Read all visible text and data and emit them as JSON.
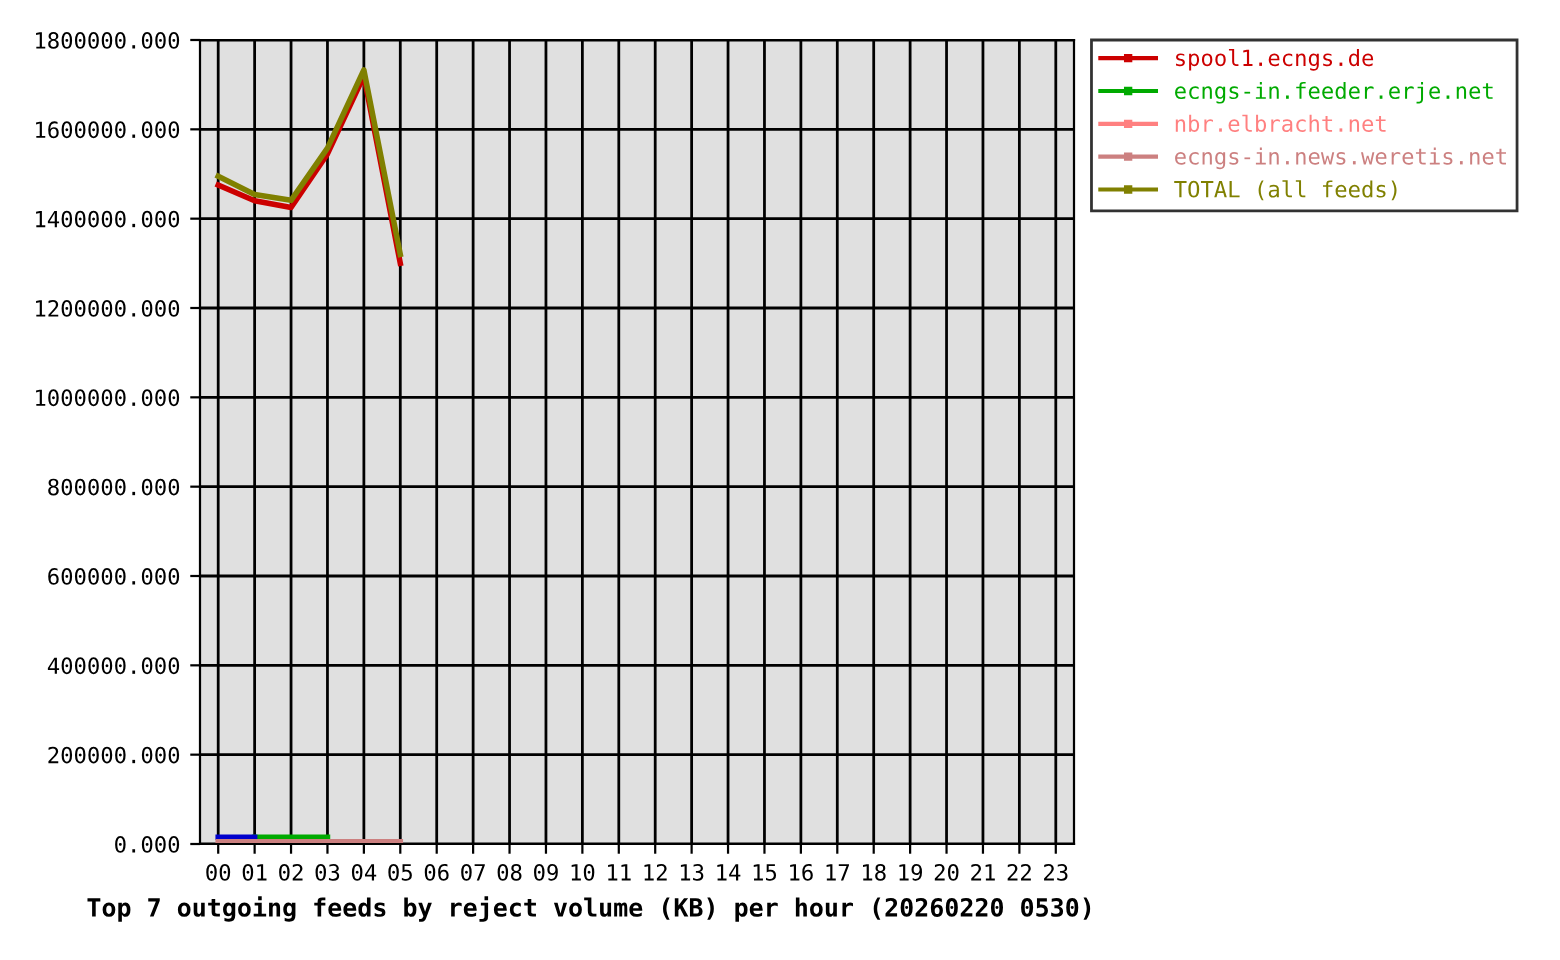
{
  "chart_data": {
    "type": "line",
    "xlabel": "Top 7 outgoing feeds by reject volume (KB) per hour (20260220 0530)",
    "categories": [
      "00",
      "01",
      "02",
      "03",
      "04",
      "05",
      "06",
      "07",
      "08",
      "09",
      "10",
      "11",
      "12",
      "13",
      "14",
      "15",
      "16",
      "17",
      "18",
      "19",
      "20",
      "21",
      "22",
      "23"
    ],
    "series": [
      {
        "name": "spool1.ecngs.de",
        "color": "#cc0000",
        "values": [
          1475000,
          1440000,
          1425000,
          1545000,
          1720000,
          1300000,
          null,
          null,
          null,
          null,
          null,
          null,
          null,
          null,
          null,
          null,
          null,
          null,
          null,
          null,
          null,
          null,
          null,
          null
        ]
      },
      {
        "name": "ecngs-in.feeder.erje.net",
        "color": "#00aa00",
        "values": [
          null,
          15000,
          15000,
          15000,
          null,
          null,
          null,
          null,
          null,
          null,
          null,
          null,
          null,
          null,
          null,
          null,
          null,
          null,
          null,
          null,
          null,
          null,
          null,
          null
        ]
      },
      {
        "color": "#0000cc",
        "values": [
          15000,
          15000,
          null,
          null,
          null,
          null,
          null,
          null,
          null,
          null,
          null,
          null,
          null,
          null,
          null,
          null,
          null,
          null,
          null,
          null,
          null,
          null,
          null,
          null
        ]
      },
      {
        "color": "#aa00cc",
        "values": [
          null,
          null,
          null,
          null,
          null,
          null,
          null,
          null,
          null,
          null,
          null,
          null,
          null,
          null,
          null,
          null,
          null,
          null,
          null,
          null,
          null,
          null,
          null,
          null
        ]
      },
      {
        "name": "nbr.elbracht.net",
        "color": "#ff8080",
        "values": [
          null,
          null,
          null,
          null,
          null,
          null,
          null,
          null,
          null,
          null,
          null,
          null,
          null,
          null,
          null,
          null,
          null,
          null,
          null,
          null,
          null,
          null,
          null,
          null
        ]
      },
      {
        "color": "#ff8000",
        "values": [
          null,
          null,
          null,
          null,
          null,
          null,
          null,
          null,
          null,
          null,
          null,
          null,
          null,
          null,
          null,
          null,
          null,
          null,
          null,
          null,
          null,
          null,
          null,
          null
        ]
      },
      {
        "name": "ecngs-in.news.weretis.net",
        "color": "#cc8080",
        "values": [
          5000,
          5000,
          5000,
          5000,
          5000,
          5000,
          null,
          null,
          null,
          null,
          null,
          null,
          null,
          null,
          null,
          null,
          null,
          null,
          null,
          null,
          null,
          null,
          null,
          null
        ]
      },
      {
        "name": "TOTAL (all feeds)",
        "color": "#808000",
        "values": [
          1495000,
          1454000,
          1441000,
          1558000,
          1733000,
          1320000,
          null,
          null,
          null,
          null,
          null,
          null,
          null,
          null,
          null,
          null,
          null,
          null,
          null,
          null,
          null,
          null,
          null,
          null
        ]
      }
    ],
    "ylim": [
      0,
      1800000
    ],
    "yticks": [
      {
        "value": 0,
        "label": "0.000"
      },
      {
        "value": 200000,
        "label": "200000.000"
      },
      {
        "value": 400000,
        "label": "400000.000"
      },
      {
        "value": 600000,
        "label": "600000.000"
      },
      {
        "value": 800000,
        "label": "800000.000"
      },
      {
        "value": 1000000,
        "label": "1000000.000"
      },
      {
        "value": 1200000,
        "label": "1200000.000"
      },
      {
        "value": 1400000,
        "label": "1400000.000"
      },
      {
        "value": 1600000,
        "label": "1600000.000"
      },
      {
        "value": 1800000,
        "label": "1800000.000"
      }
    ],
    "grid": true,
    "legend": "right",
    "line_style": "solid"
  }
}
